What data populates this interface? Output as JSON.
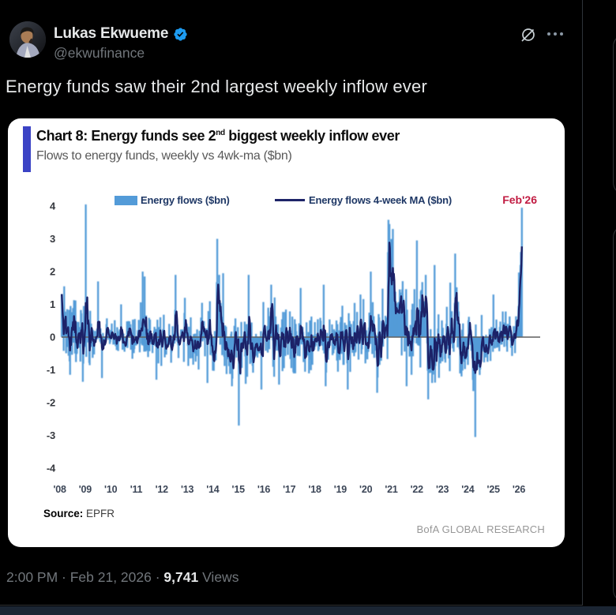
{
  "post": {
    "author": "Lukas Ekwueme",
    "handle": "@ekwufinance",
    "text": "Energy funds saw their 2nd largest weekly inflow ever",
    "timestamp": "2:00 PM · Feb 21, 2026 · ",
    "views_count": "9,741",
    "views_label": " Views",
    "icons": {
      "verified": "verified-badge",
      "grok": "grok-slashed-circle",
      "more": "ellipsis"
    },
    "colors": {
      "verified_blue": "#1d9bf0",
      "text_primary": "#e7e9ea",
      "text_secondary": "#71767b",
      "background": "#000000"
    }
  },
  "chart_card": {
    "title_prefix": "Chart 8: Energy funds see 2",
    "title_sup": "nd",
    "title_suffix": " biggest weekly inflow ever",
    "subtitle": "Flows to energy funds, weekly vs 4wk-ma ($bn)",
    "source_label": "Source:",
    "source_value": " EPFR",
    "branding": "BofA GLOBAL RESEARCH",
    "accent_color": "#3b43c5",
    "annotation_text": "Feb'26",
    "annotation_color": "#c11b42"
  },
  "chart_data": {
    "type": "bar+line",
    "title": "Chart 8: Energy funds see 2nd biggest weekly inflow ever",
    "subtitle": "Flows to energy funds, weekly vs 4wk-ma ($bn)",
    "x_range": [
      2008,
      2026.15
    ],
    "ylim": [
      -4,
      4
    ],
    "yticks": [
      4,
      3,
      2,
      1,
      0,
      "-1",
      "-2",
      "-3",
      "-4"
    ],
    "xtick_labels": [
      "'08",
      "'09",
      "'10",
      "'11",
      "'12",
      "'13",
      "'14",
      "'15",
      "'16",
      "'17",
      "'18",
      "'19",
      "'20",
      "'21",
      "'22",
      "'23",
      "'24",
      "'25",
      "'26"
    ],
    "grid": false,
    "legend_position": "top",
    "series": [
      {
        "name": "Energy flows ($bn)",
        "type": "bar",
        "color": "#539bd8"
      },
      {
        "name": "Energy flows 4-week MA ($bn)",
        "type": "line",
        "color": "#1e2468"
      }
    ],
    "weekly_bars": {
      "frequency_per_year": 52,
      "start": 2008.08,
      "end": 2026.13,
      "baseline_segments": [
        [
          2008.0,
          2008.6,
          0.1,
          0.55
        ],
        [
          2008.6,
          2009.3,
          -0.05,
          0.6
        ],
        [
          2009.3,
          2010.8,
          0.0,
          0.26
        ],
        [
          2010.8,
          2011.6,
          0.05,
          0.46
        ],
        [
          2011.6,
          2013.4,
          0.0,
          0.4
        ],
        [
          2013.4,
          2014.1,
          -0.05,
          0.52
        ],
        [
          2014.1,
          2014.35,
          0.75,
          0.7
        ],
        [
          2014.35,
          2015.3,
          -0.15,
          0.58
        ],
        [
          2015.3,
          2016.8,
          0.0,
          0.55
        ],
        [
          2016.8,
          2019.4,
          -0.05,
          0.48
        ],
        [
          2019.4,
          2020.6,
          -0.05,
          0.55
        ],
        [
          2020.6,
          2020.85,
          0.3,
          0.58
        ],
        [
          2020.85,
          2021.15,
          1.6,
          0.9
        ],
        [
          2021.15,
          2021.5,
          0.6,
          0.7
        ],
        [
          2021.5,
          2022.1,
          0.1,
          0.62
        ],
        [
          2022.1,
          2022.4,
          0.45,
          0.7
        ],
        [
          2022.4,
          2022.75,
          -0.6,
          0.52
        ],
        [
          2022.75,
          2023.3,
          -0.1,
          0.52
        ],
        [
          2023.3,
          2023.65,
          0.3,
          0.62
        ],
        [
          2023.65,
          2024.15,
          -0.25,
          0.48
        ],
        [
          2024.15,
          2024.5,
          -0.6,
          0.52
        ],
        [
          2024.5,
          2025.1,
          -0.15,
          0.42
        ],
        [
          2025.1,
          2025.85,
          0.1,
          0.38
        ],
        [
          2025.85,
          2026.0,
          0.5,
          0.32
        ],
        [
          2026.0,
          2026.15,
          1.8,
          0.8
        ]
      ],
      "key_weeks": [
        [
          2008.17,
          1.55
        ],
        [
          2008.4,
          -1.15
        ],
        [
          2008.95,
          0.95
        ],
        [
          2009.02,
          4.05
        ],
        [
          2009.5,
          1.7
        ],
        [
          2009.65,
          -1.25
        ],
        [
          2010.4,
          1.0
        ],
        [
          2011.25,
          2.0
        ],
        [
          2011.33,
          1.85
        ],
        [
          2011.8,
          -1.3
        ],
        [
          2012.55,
          1.9
        ],
        [
          2012.9,
          1.2
        ],
        [
          2013.8,
          -1.4
        ],
        [
          2014.17,
          3.0
        ],
        [
          2014.4,
          1.95
        ],
        [
          2014.75,
          -1.5
        ],
        [
          2015.02,
          -2.7
        ],
        [
          2015.4,
          1.9
        ],
        [
          2015.9,
          -1.6
        ],
        [
          2016.3,
          1.6
        ],
        [
          2016.6,
          -1.45
        ],
        [
          2017.45,
          1.5
        ],
        [
          2018.35,
          1.6
        ],
        [
          2018.42,
          -1.5
        ],
        [
          2019.3,
          -1.6
        ],
        [
          2019.8,
          1.3
        ],
        [
          2020.2,
          2.0
        ],
        [
          2020.45,
          -1.7
        ],
        [
          2020.92,
          3.45
        ],
        [
          2021.06,
          3.3
        ],
        [
          2021.6,
          -1.5
        ],
        [
          2022.0,
          2.95
        ],
        [
          2022.45,
          -1.9
        ],
        [
          2022.7,
          2.2
        ],
        [
          2023.5,
          2.55
        ],
        [
          2024.3,
          -3.05
        ],
        [
          2025.0,
          1.3
        ],
        [
          2026.04,
          1.7
        ],
        [
          2026.08,
          2.6
        ],
        [
          2026.12,
          3.95
        ]
      ]
    },
    "annotation": {
      "text": "Feb'26",
      "x": 2026.1,
      "color": "#c11b42"
    },
    "zero_line_color": "#5f5f5f"
  }
}
